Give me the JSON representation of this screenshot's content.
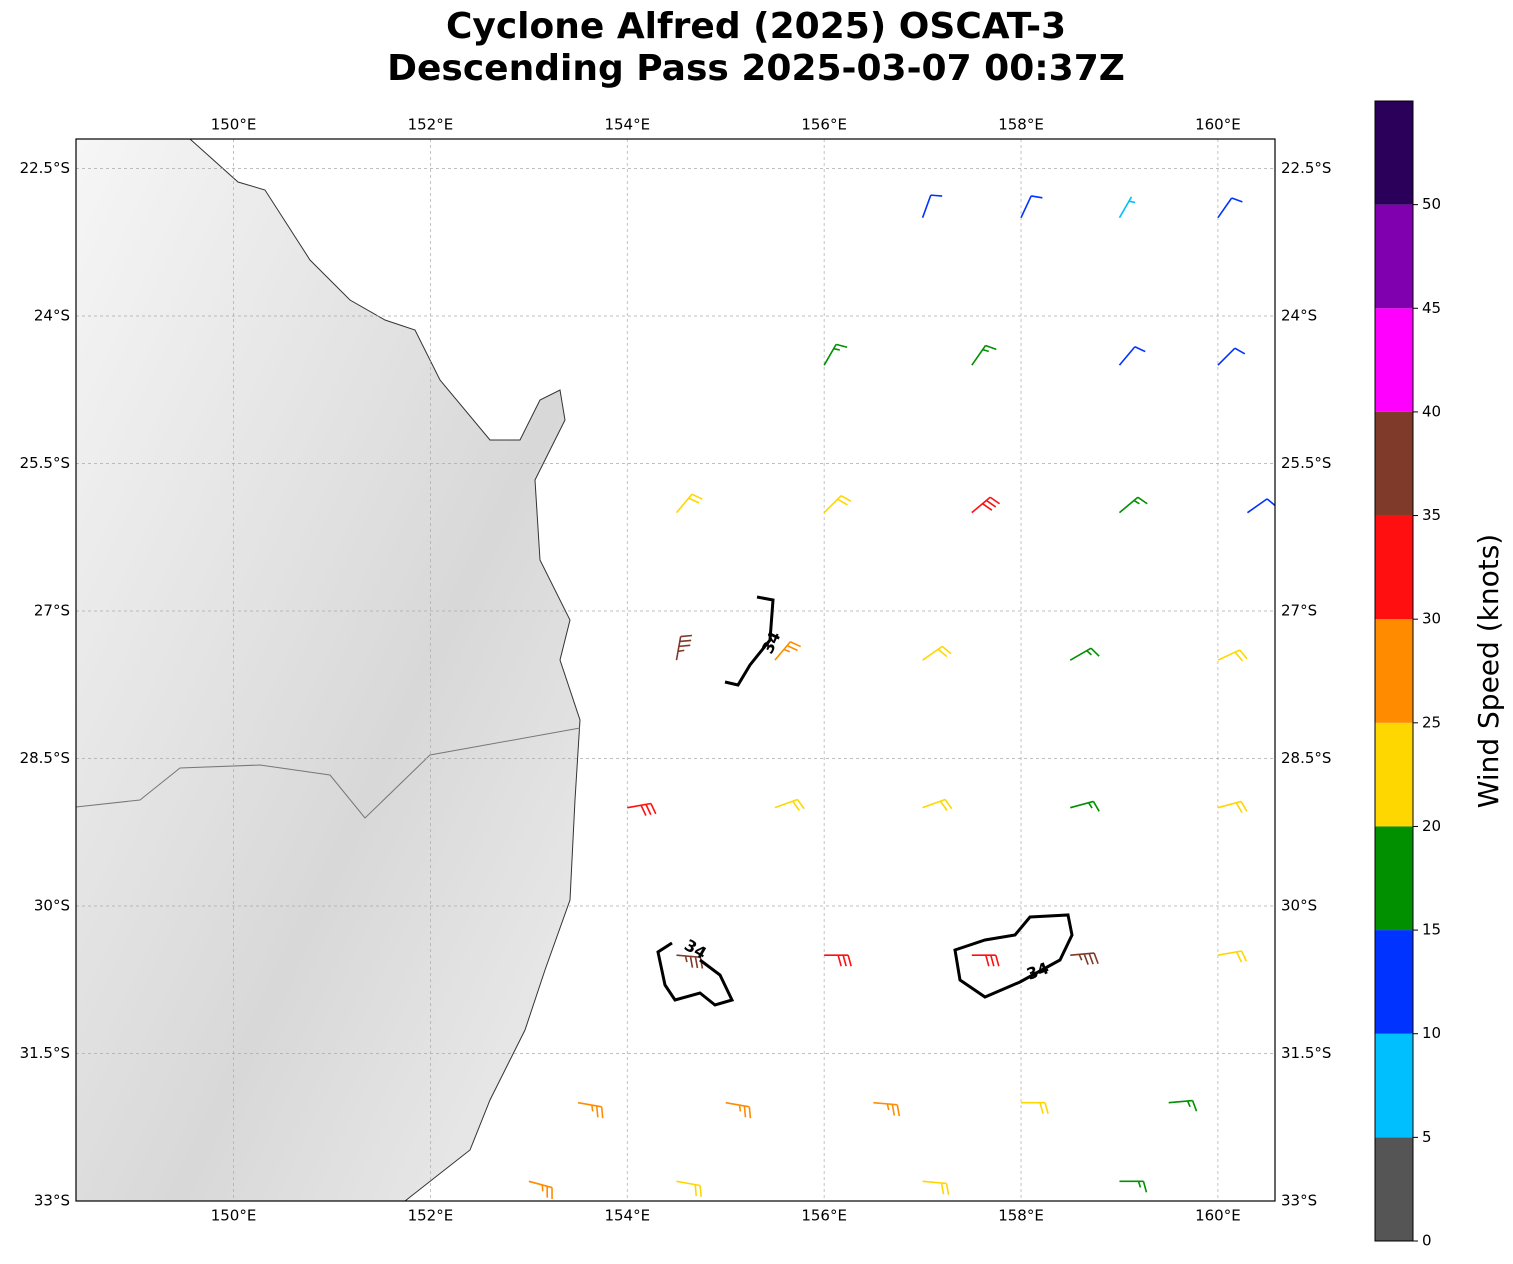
{
  "chart_data": {
    "type": "wind-barbs",
    "title": "Cyclone Alfred (2025) OSCAT-3",
    "subtitle": "Descending Pass 2025-03-07 00:37Z",
    "xlim": [
      148.4,
      160.58
    ],
    "ylim": [
      -33,
      -22.2
    ],
    "xticks": [
      {
        "value": 150,
        "label": "150°E"
      },
      {
        "value": 152,
        "label": "152°E"
      },
      {
        "value": 154,
        "label": "154°E"
      },
      {
        "value": 156,
        "label": "156°E"
      },
      {
        "value": 158,
        "label": "158°E"
      },
      {
        "value": 160,
        "label": "160°E"
      }
    ],
    "yticks": [
      {
        "value": -22.5,
        "label": "22.5°S"
      },
      {
        "value": -24,
        "label": "24°S"
      },
      {
        "value": -25.5,
        "label": "25.5°S"
      },
      {
        "value": -27,
        "label": "27°S"
      },
      {
        "value": -28.5,
        "label": "28.5°S"
      },
      {
        "value": -30,
        "label": "30°S"
      },
      {
        "value": -31.5,
        "label": "31.5°S"
      },
      {
        "value": -33,
        "label": "33°S"
      }
    ],
    "grid": true,
    "barbs": {
      "lon": [
        157,
        158,
        159,
        160,
        156,
        157.5,
        159,
        160,
        154.5,
        156,
        157.5,
        159,
        160.3,
        154.5,
        155.5,
        157,
        158.5,
        160,
        154,
        155.5,
        157,
        158.5,
        160,
        154.5,
        156,
        157.5,
        158.5,
        160,
        153.5,
        155,
        156.5,
        158,
        159.5,
        153,
        154.5,
        157,
        159
      ],
      "lat": [
        -23,
        -23,
        -23,
        -23,
        -24.5,
        -24.5,
        -24.5,
        -24.5,
        -26,
        -26,
        -26,
        -26,
        -26,
        -27.5,
        -27.5,
        -27.5,
        -27.5,
        -27.5,
        -29,
        -29,
        -29,
        -29,
        -29,
        -30.5,
        -30.5,
        -30.5,
        -30.5,
        -30.5,
        -32,
        -32,
        -32,
        -32,
        -32,
        -32.8,
        -32.8,
        -32.8,
        -32.8
      ],
      "speed": [
        12,
        13,
        8,
        12,
        17,
        18,
        13,
        12,
        22,
        22,
        32,
        18,
        14,
        37,
        27,
        23,
        18,
        22,
        32,
        22,
        22,
        17,
        23,
        37,
        32,
        33,
        36,
        23,
        27,
        28,
        27,
        22,
        17,
        27,
        22,
        22,
        17
      ],
      "dir": [
        20,
        25,
        30,
        35,
        30,
        35,
        40,
        45,
        40,
        45,
        50,
        50,
        55,
        10,
        40,
        55,
        60,
        65,
        80,
        70,
        70,
        75,
        75,
        95,
        90,
        90,
        85,
        80,
        100,
        100,
        95,
        90,
        85,
        105,
        100,
        95,
        90
      ]
    },
    "contour_labels": [
      "34",
      "34",
      "34"
    ],
    "colorbar": {
      "label": "Wind Speed (knots)",
      "bounds": [
        0,
        5,
        10,
        15,
        20,
        25,
        30,
        35,
        40,
        45,
        50,
        55
      ],
      "colors": [
        "#555555",
        "#00bfff",
        "#0033ff",
        "#009000",
        "#ffd700",
        "#ff8c00",
        "#ff0f0f",
        "#7f3a2a",
        "#ff00ff",
        "#8000b0",
        "#2b005b"
      ],
      "ticks": [
        0,
        5,
        10,
        15,
        20,
        25,
        30,
        35,
        40,
        45,
        50
      ]
    }
  }
}
